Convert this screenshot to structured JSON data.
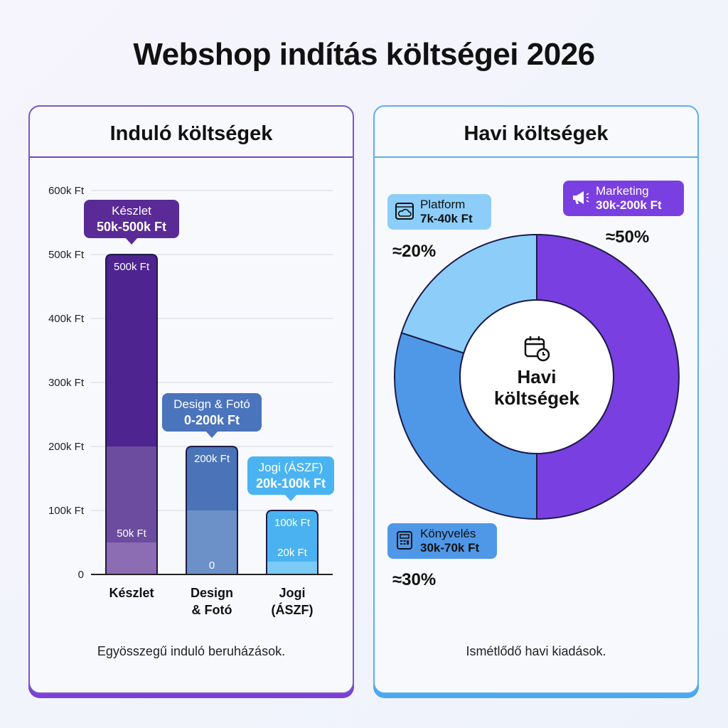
{
  "title": "Webshop indítás költségei 2026",
  "left": {
    "title": "Induló költségek",
    "footer": "Egyösszegű induló beruházások."
  },
  "right": {
    "title": "Havi költségek",
    "footer": "Ismétlődő havi kiadások.",
    "center_label_1": "Havi",
    "center_label_2": "költségek",
    "center_icon": "calendar-clock-icon"
  },
  "chart_data": [
    {
      "type": "bar",
      "title": "Induló költségek",
      "ylim": [
        0,
        600000
      ],
      "yticks": [
        "0",
        "100k Ft",
        "200k Ft",
        "300k Ft",
        "400k Ft",
        "500k Ft",
        "600k Ft"
      ],
      "categories": [
        "Készlet",
        "Design & Fotó",
        "Jogi (ÁSZF)"
      ],
      "category_labels": [
        [
          "Készlet"
        ],
        [
          "Design",
          "& Fotó"
        ],
        [
          "Jogi",
          "(ÁSZF)"
        ]
      ],
      "ranges": [
        [
          50000,
          500000
        ],
        [
          0,
          200000
        ],
        [
          20000,
          100000
        ]
      ],
      "segments": [
        [
          50000,
          200000,
          500000
        ],
        [
          100000,
          200000
        ],
        [
          20000,
          100000
        ]
      ],
      "bar_labels": [
        [
          "500k Ft",
          "50k Ft"
        ],
        [
          "200k Ft",
          "0"
        ],
        [
          "100k Ft",
          "20k Ft"
        ]
      ],
      "callouts": [
        {
          "name": "Készlet",
          "range": "50k-500k Ft"
        },
        {
          "name": "Design & Fotó",
          "range": "0-200k Ft"
        },
        {
          "name": "Jogi (ÁSZF)",
          "range": "20k-100k Ft"
        }
      ],
      "colors": [
        [
          "#8c6cb3",
          "#6c4c9e",
          "#4e2490"
        ],
        [
          "#6c90c8",
          "#4a73b8"
        ],
        [
          "#7bcbf6",
          "#4ab2f0"
        ]
      ],
      "callout_colors": [
        "#5a2a96",
        "#4a74bb",
        "#4ab4f2"
      ]
    },
    {
      "type": "pie",
      "donut": true,
      "slices": [
        {
          "name": "Marketing",
          "range": "30k-200k Ft",
          "percent_label": "≈50%",
          "value": 50,
          "color": "#7a3fe0",
          "icon": "megaphone-icon"
        },
        {
          "name": "Könyvelés",
          "range": "30k-70k Ft",
          "percent_label": "≈30%",
          "value": 30,
          "color": "#4f98e8",
          "icon": "calculator-icon"
        },
        {
          "name": "Platform",
          "range": "7k-40k Ft",
          "percent_label": "≈20%",
          "value": 20,
          "color": "#8ccef9",
          "icon": "browser-cloud-icon"
        }
      ]
    }
  ]
}
